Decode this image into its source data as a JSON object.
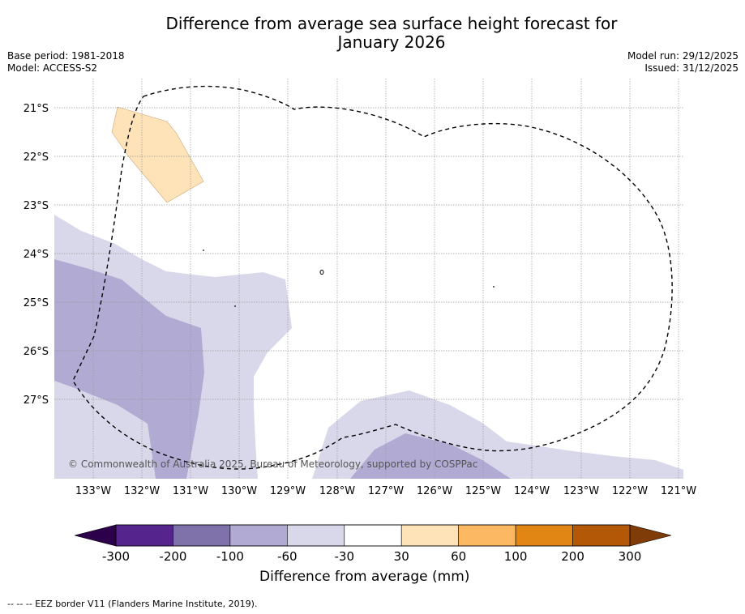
{
  "title_line1": "Difference from average sea surface height forecast for",
  "title_line2": "January 2026",
  "meta": {
    "base_period": "Base period: 1981-2018",
    "model": "Model: ACCESS-S2",
    "model_run": "Model run: 29/12/2025",
    "issued": "Issued: 31/12/2025"
  },
  "map": {
    "lat_ticks": [
      "21°S",
      "22°S",
      "23°S",
      "24°S",
      "25°S",
      "26°S",
      "27°S"
    ],
    "lon_ticks": [
      "133°W",
      "132°W",
      "131°W",
      "130°W",
      "129°W",
      "128°W",
      "127°W",
      "126°W",
      "125°W",
      "124°W",
      "123°W",
      "122°W",
      "121°W"
    ],
    "copyright": "© Commonwealth of Australia 2025, Bureau of Meteorology, supported by COSPPac",
    "colors": {
      "minus_30_60": "#d9d8ea",
      "minus_60_100": "#b1aad3",
      "plus_30_60": "#fee2b8",
      "eez": "#000000",
      "grid": "#999999"
    }
  },
  "colorbar": {
    "labels": [
      "-300",
      "-200",
      "-100",
      "-60",
      "-30",
      "30",
      "60",
      "100",
      "200",
      "300"
    ],
    "colors": [
      "#55248c",
      "#7f72aa",
      "#b1aad3",
      "#d9d8ea",
      "#ffffff",
      "#fee2b8",
      "#fdb863",
      "#e18514",
      "#b35806"
    ],
    "extend_low": "#2d004b",
    "extend_high": "#7f3b08",
    "title": "Difference from average (mm)"
  },
  "footer": "--  --  -- EEZ border V11 (Flanders Marine Institute, 2019)."
}
